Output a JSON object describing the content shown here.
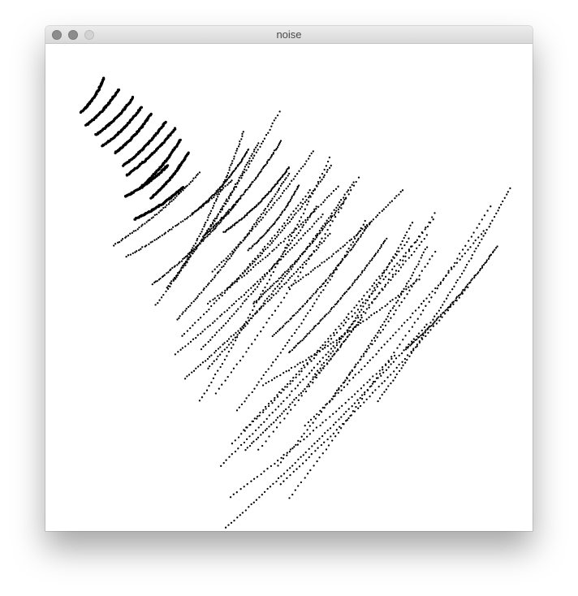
{
  "window": {
    "title": "noise",
    "buttons": {
      "close": "close-button",
      "minimize": "minimize-button",
      "zoom": "zoom-button"
    }
  },
  "sketch": {
    "background_color": "#ffffff",
    "point_color": "#000000"
  }
}
